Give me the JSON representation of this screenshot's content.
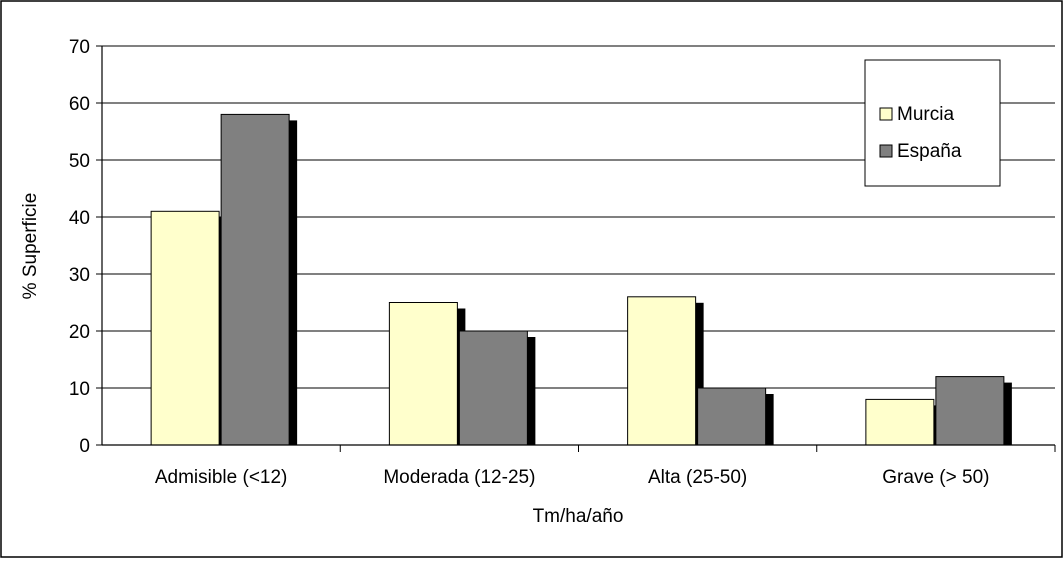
{
  "chart_data": {
    "type": "bar",
    "title": "",
    "xlabel": "Tm/ha/año",
    "ylabel": "% Superficie",
    "ylim": [
      0,
      70
    ],
    "yticks": [
      0,
      10,
      20,
      30,
      40,
      50,
      60,
      70
    ],
    "grid": true,
    "legend_position": "top-right",
    "categories": [
      "Admisible (<12)",
      "Moderada (12-25)",
      "Alta (25-50)",
      "Grave (> 50)"
    ],
    "series": [
      {
        "name": "Murcia",
        "color": "#ffffcc",
        "values": [
          41,
          25,
          26,
          8
        ]
      },
      {
        "name": "España",
        "color": "#808080",
        "values": [
          58,
          20,
          10,
          12
        ]
      }
    ]
  }
}
